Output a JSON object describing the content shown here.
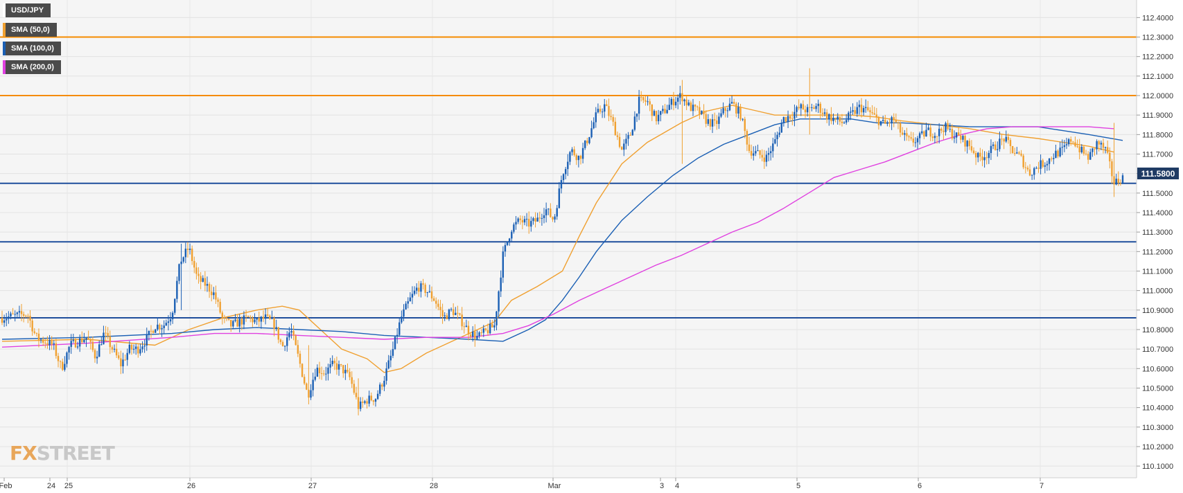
{
  "legend": {
    "symbol": "USD/JPY",
    "sma50": "SMA (50,0)",
    "sma100": "SMA (100,0)",
    "sma200": "SMA (200,0)"
  },
  "watermark": {
    "fx": "FX",
    "street": "STREET"
  },
  "colors": {
    "bull": "#1a5fb4",
    "bear": "#f0a030",
    "sma50": "#f0a030",
    "sma100": "#1a5fb4",
    "sma200": "#e040e0",
    "resistance": "#f58b00",
    "support": "#1f4e9c",
    "price_box": "#1f3b64"
  },
  "chart_data": {
    "type": "candlestick",
    "title": "",
    "xlabel": "",
    "ylabel": "",
    "ylim": [
      110.04,
      112.49
    ],
    "y_ticks": [
      "112.4000",
      "112.3000",
      "112.2000",
      "112.1000",
      "112.0000",
      "111.9000",
      "111.8000",
      "111.7000",
      "111.6000",
      "111.5000",
      "111.4000",
      "111.3000",
      "111.2000",
      "111.1000",
      "111.0000",
      "110.9000",
      "110.8000",
      "110.7000",
      "110.6000",
      "110.5000",
      "110.4000",
      "110.3000",
      "110.2000",
      "110.1000"
    ],
    "x_ticks": [
      "Feb",
      "24",
      "25",
      "26",
      "27",
      "28",
      "Mar",
      "3",
      "4",
      "5",
      "6",
      "7"
    ],
    "current_price": "111.5800",
    "horizontal_levels": [
      {
        "value": 112.3,
        "kind": "resistance"
      },
      {
        "value": 112.0,
        "kind": "resistance"
      },
      {
        "value": 111.55,
        "kind": "support"
      },
      {
        "value": 111.25,
        "kind": "support"
      },
      {
        "value": 110.86,
        "kind": "support"
      }
    ],
    "close_path": [
      [
        0,
        110.86
      ],
      [
        3,
        110.88
      ],
      [
        4,
        110.76
      ],
      [
        6,
        110.72
      ],
      [
        7,
        110.6
      ],
      [
        8,
        110.72
      ],
      [
        10,
        110.76
      ],
      [
        11,
        110.66
      ],
      [
        12,
        110.78
      ],
      [
        13,
        110.7
      ],
      [
        14,
        110.62
      ],
      [
        15,
        110.7
      ],
      [
        16,
        110.7
      ],
      [
        17,
        110.75
      ],
      [
        18,
        110.82
      ],
      [
        19,
        110.82
      ],
      [
        20,
        110.88
      ],
      [
        21,
        111.15
      ],
      [
        22,
        111.22
      ],
      [
        23,
        111.06
      ],
      [
        24,
        111.03
      ],
      [
        25,
        110.98
      ],
      [
        26,
        110.85
      ],
      [
        27,
        110.82
      ],
      [
        28,
        110.84
      ],
      [
        29,
        110.86
      ],
      [
        30,
        110.84
      ],
      [
        31,
        110.86
      ],
      [
        32,
        110.83
      ],
      [
        33,
        110.71
      ],
      [
        34,
        110.8
      ],
      [
        35,
        110.64
      ],
      [
        36,
        110.46
      ],
      [
        37,
        110.6
      ],
      [
        38,
        110.58
      ],
      [
        39,
        110.62
      ],
      [
        40,
        110.6
      ],
      [
        41,
        110.55
      ],
      [
        42,
        110.4
      ],
      [
        43,
        110.44
      ],
      [
        44,
        110.45
      ],
      [
        45,
        110.55
      ],
      [
        46,
        110.69
      ],
      [
        47,
        110.86
      ],
      [
        48,
        110.95
      ],
      [
        49,
        111.02
      ],
      [
        50,
        111.0
      ],
      [
        51,
        110.95
      ],
      [
        52,
        110.86
      ],
      [
        53,
        110.9
      ],
      [
        54,
        110.85
      ],
      [
        55,
        110.79
      ],
      [
        56,
        110.76
      ],
      [
        57,
        110.79
      ],
      [
        58,
        110.82
      ],
      [
        59,
        111.18
      ],
      [
        60,
        111.32
      ],
      [
        61,
        111.36
      ],
      [
        62,
        111.34
      ],
      [
        63,
        111.36
      ],
      [
        64,
        111.42
      ],
      [
        65,
        111.36
      ],
      [
        66,
        111.6
      ],
      [
        67,
        111.72
      ],
      [
        68,
        111.68
      ],
      [
        69,
        111.78
      ],
      [
        70,
        111.9
      ],
      [
        71,
        111.95
      ],
      [
        72,
        111.85
      ],
      [
        73,
        111.72
      ],
      [
        74,
        111.8
      ],
      [
        75,
        111.97
      ],
      [
        76,
        111.97
      ],
      [
        77,
        111.88
      ],
      [
        78,
        111.92
      ],
      [
        79,
        111.97
      ],
      [
        80,
        112.0
      ],
      [
        81,
        111.94
      ],
      [
        82,
        111.92
      ],
      [
        83,
        111.87
      ],
      [
        84,
        111.85
      ],
      [
        85,
        111.92
      ],
      [
        86,
        111.96
      ],
      [
        87,
        111.9
      ],
      [
        88,
        111.72
      ],
      [
        89,
        111.7
      ],
      [
        90,
        111.68
      ],
      [
        91,
        111.76
      ],
      [
        92,
        111.88
      ],
      [
        93,
        111.9
      ],
      [
        94,
        111.94
      ],
      [
        95,
        111.92
      ],
      [
        96,
        111.95
      ],
      [
        97,
        111.9
      ],
      [
        98,
        111.88
      ],
      [
        99,
        111.86
      ],
      [
        100,
        111.9
      ],
      [
        101,
        111.94
      ],
      [
        102,
        111.92
      ],
      [
        103,
        111.88
      ],
      [
        104,
        111.85
      ],
      [
        105,
        111.88
      ],
      [
        106,
        111.8
      ],
      [
        107,
        111.76
      ],
      [
        108,
        111.78
      ],
      [
        109,
        111.82
      ],
      [
        110,
        111.8
      ],
      [
        111,
        111.84
      ],
      [
        112,
        111.8
      ],
      [
        113,
        111.78
      ],
      [
        114,
        111.74
      ],
      [
        115,
        111.68
      ],
      [
        116,
        111.7
      ],
      [
        117,
        111.74
      ],
      [
        118,
        111.78
      ],
      [
        119,
        111.72
      ],
      [
        120,
        111.68
      ],
      [
        121,
        111.6
      ],
      [
        122,
        111.64
      ],
      [
        123,
        111.66
      ],
      [
        124,
        111.7
      ],
      [
        125,
        111.72
      ],
      [
        126,
        111.78
      ],
      [
        127,
        111.72
      ],
      [
        128,
        111.68
      ],
      [
        129,
        111.76
      ],
      [
        130,
        111.72
      ],
      [
        131,
        111.55
      ],
      [
        132,
        111.58
      ]
    ],
    "wick_events": [
      {
        "i": 95,
        "high": 112.14,
        "low": 111.8
      },
      {
        "i": 80,
        "high": 112.08,
        "low": 111.65
      },
      {
        "i": 131,
        "high": 111.86,
        "low": 111.48
      },
      {
        "i": 21,
        "high": 111.24,
        "low": 110.9
      },
      {
        "i": 36,
        "high": 110.72,
        "low": 110.42
      },
      {
        "i": 42,
        "high": 110.55,
        "low": 110.36
      }
    ],
    "series": [
      {
        "name": "SMA (50,0)",
        "key": "sma50",
        "points": [
          [
            0,
            110.74
          ],
          [
            10,
            110.75
          ],
          [
            18,
            110.72
          ],
          [
            22,
            110.8
          ],
          [
            26,
            110.86
          ],
          [
            30,
            110.9
          ],
          [
            33,
            110.92
          ],
          [
            35,
            110.9
          ],
          [
            38,
            110.78
          ],
          [
            40,
            110.7
          ],
          [
            43,
            110.65
          ],
          [
            45,
            110.58
          ],
          [
            47,
            110.6
          ],
          [
            50,
            110.68
          ],
          [
            53,
            110.74
          ],
          [
            56,
            110.8
          ],
          [
            58,
            110.84
          ],
          [
            60,
            110.95
          ],
          [
            63,
            111.02
          ],
          [
            66,
            111.1
          ],
          [
            68,
            111.28
          ],
          [
            70,
            111.45
          ],
          [
            73,
            111.65
          ],
          [
            76,
            111.76
          ],
          [
            80,
            111.86
          ],
          [
            83,
            111.92
          ],
          [
            86,
            111.95
          ],
          [
            89,
            111.92
          ],
          [
            91,
            111.9
          ],
          [
            94,
            111.9
          ],
          [
            97,
            111.9
          ],
          [
            100,
            111.9
          ],
          [
            103,
            111.89
          ],
          [
            106,
            111.87
          ],
          [
            110,
            111.85
          ],
          [
            114,
            111.83
          ],
          [
            118,
            111.8
          ],
          [
            122,
            111.78
          ],
          [
            125,
            111.76
          ],
          [
            128,
            111.74
          ],
          [
            131,
            111.71
          ]
        ]
      },
      {
        "name": "SMA (100,0)",
        "key": "sma100",
        "points": [
          [
            0,
            110.75
          ],
          [
            10,
            110.76
          ],
          [
            20,
            110.78
          ],
          [
            25,
            110.8
          ],
          [
            30,
            110.81
          ],
          [
            35,
            110.8
          ],
          [
            40,
            110.79
          ],
          [
            45,
            110.77
          ],
          [
            50,
            110.76
          ],
          [
            55,
            110.75
          ],
          [
            59,
            110.74
          ],
          [
            62,
            110.8
          ],
          [
            64,
            110.85
          ],
          [
            66,
            110.95
          ],
          [
            68,
            111.07
          ],
          [
            70,
            111.2
          ],
          [
            73,
            111.36
          ],
          [
            76,
            111.48
          ],
          [
            79,
            111.59
          ],
          [
            82,
            111.68
          ],
          [
            85,
            111.75
          ],
          [
            88,
            111.8
          ],
          [
            91,
            111.85
          ],
          [
            94,
            111.88
          ],
          [
            97,
            111.88
          ],
          [
            100,
            111.88
          ],
          [
            103,
            111.86
          ],
          [
            106,
            111.86
          ],
          [
            110,
            111.85
          ],
          [
            114,
            111.84
          ],
          [
            118,
            111.84
          ],
          [
            122,
            111.84
          ],
          [
            125,
            111.82
          ],
          [
            128,
            111.8
          ],
          [
            132,
            111.77
          ]
        ]
      },
      {
        "name": "SMA (200,0)",
        "key": "sma200",
        "points": [
          [
            0,
            110.71
          ],
          [
            10,
            110.73
          ],
          [
            20,
            110.76
          ],
          [
            25,
            110.78
          ],
          [
            30,
            110.78
          ],
          [
            35,
            110.77
          ],
          [
            40,
            110.76
          ],
          [
            45,
            110.75
          ],
          [
            50,
            110.76
          ],
          [
            55,
            110.76
          ],
          [
            59,
            110.78
          ],
          [
            62,
            110.82
          ],
          [
            65,
            110.88
          ],
          [
            68,
            110.95
          ],
          [
            71,
            111.01
          ],
          [
            74,
            111.07
          ],
          [
            77,
            111.13
          ],
          [
            80,
            111.18
          ],
          [
            83,
            111.24
          ],
          [
            86,
            111.3
          ],
          [
            89,
            111.35
          ],
          [
            92,
            111.42
          ],
          [
            95,
            111.5
          ],
          [
            98,
            111.58
          ],
          [
            101,
            111.62
          ],
          [
            104,
            111.66
          ],
          [
            107,
            111.71
          ],
          [
            110,
            111.76
          ],
          [
            113,
            111.8
          ],
          [
            116,
            111.83
          ],
          [
            119,
            111.84
          ],
          [
            122,
            111.84
          ],
          [
            125,
            111.84
          ],
          [
            128,
            111.84
          ],
          [
            131,
            111.83
          ]
        ]
      }
    ],
    "grid": true,
    "legend_placement": "top-left"
  }
}
